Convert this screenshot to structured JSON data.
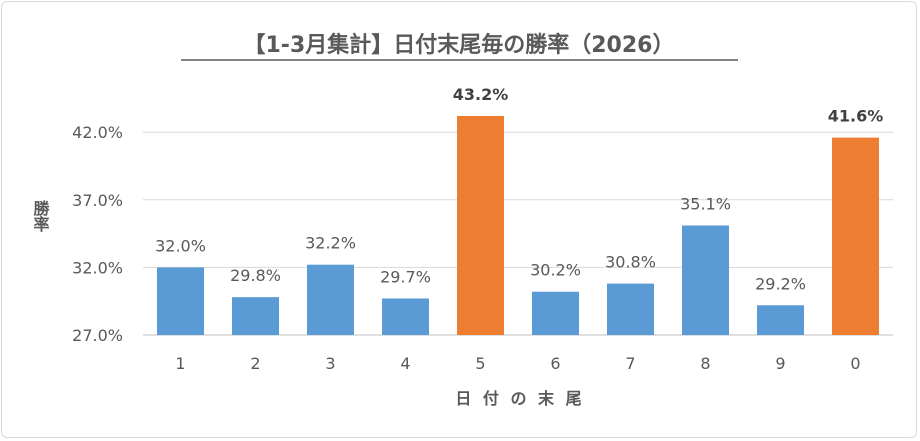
{
  "chart_data": {
    "type": "bar",
    "title": "【1-3月集計】日付末尾毎の勝率（2026）",
    "xlabel": "日 付 の 末 尾",
    "ylabel": "勝率",
    "categories": [
      "1",
      "2",
      "3",
      "4",
      "5",
      "6",
      "7",
      "8",
      "9",
      "0"
    ],
    "values": [
      32.0,
      29.8,
      32.2,
      29.7,
      43.2,
      30.2,
      30.8,
      35.1,
      29.2,
      41.6
    ],
    "data_labels": [
      "32.0%",
      "29.8%",
      "32.2%",
      "29.7%",
      "43.2%",
      "30.2%",
      "30.8%",
      "35.1%",
      "29.2%",
      "41.6%"
    ],
    "highlighted": [
      false,
      false,
      false,
      false,
      true,
      false,
      false,
      false,
      true,
      true
    ],
    "ylim": [
      27,
      44.5
    ],
    "yticks": [
      27.0,
      32.0,
      37.0,
      42.0
    ],
    "ytick_labels": [
      "27.0%",
      "32.0%",
      "37.0%",
      "42.0%"
    ],
    "grid": true,
    "legend": "none",
    "colors": {
      "normal": "#5B9BD5",
      "highlight": "#ED7D31",
      "grid": "#d9d9d9",
      "text": "#595959"
    }
  }
}
